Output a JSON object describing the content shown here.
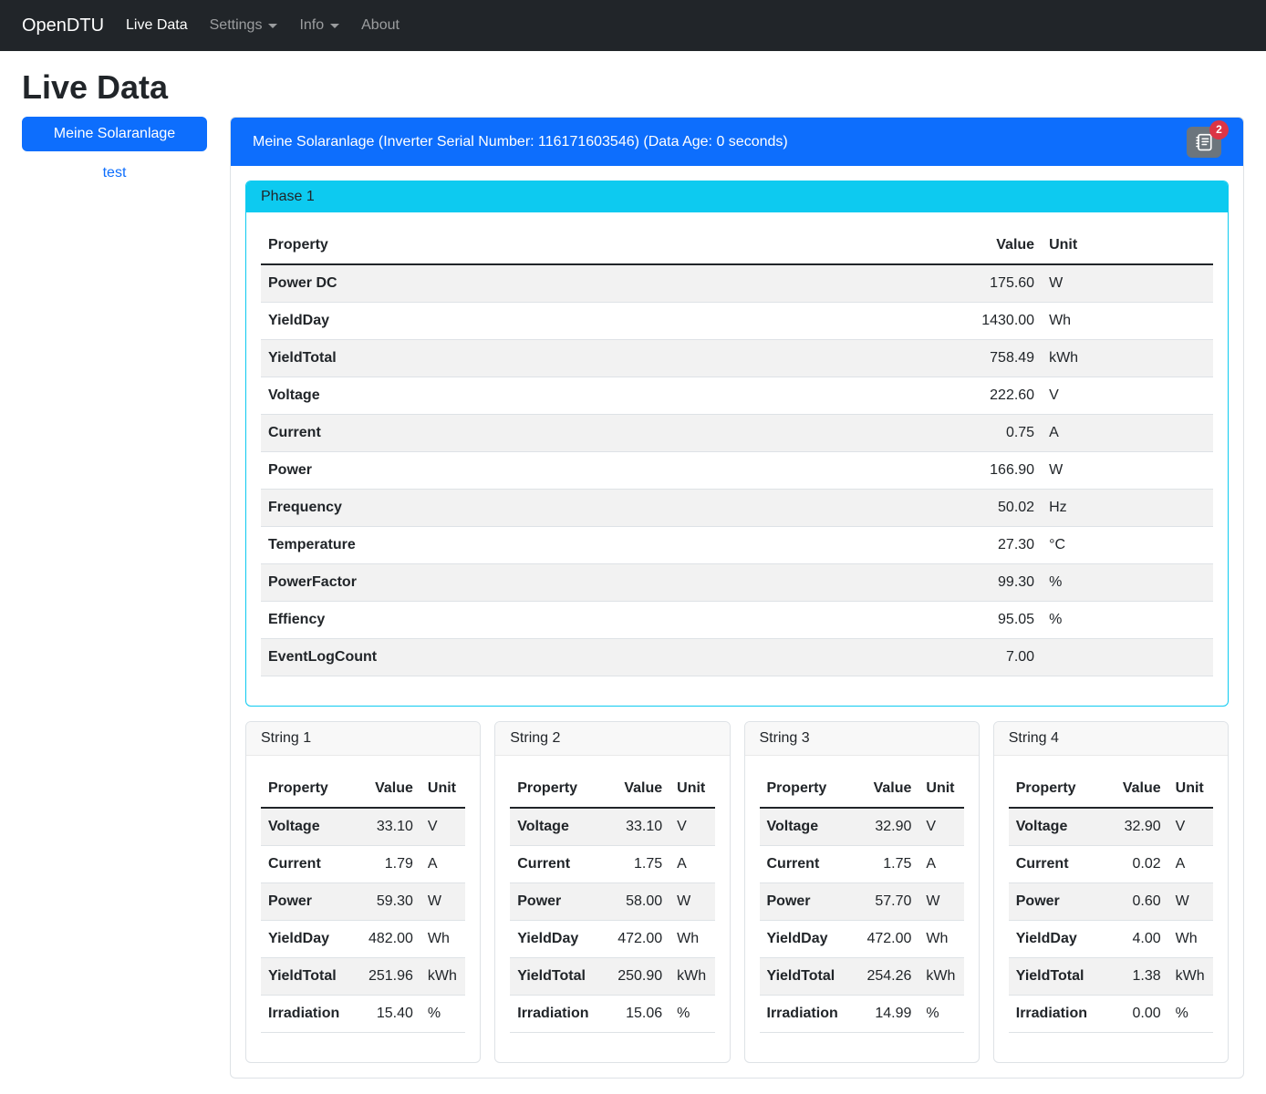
{
  "navbar": {
    "brand": "OpenDTU",
    "items": [
      {
        "label": "Live Data",
        "active": true,
        "dropdown": false
      },
      {
        "label": "Settings",
        "active": false,
        "dropdown": true
      },
      {
        "label": "Info",
        "active": false,
        "dropdown": true
      },
      {
        "label": "About",
        "active": false,
        "dropdown": false
      }
    ]
  },
  "page_title": "Live Data",
  "sidebar": {
    "inverter_button_label": "Meine Solaranlage",
    "secondary_link_label": "test"
  },
  "inverter": {
    "header_text": "Meine Solaranlage (Inverter Serial Number: 116171603546) (Data Age: 0 seconds)",
    "eventlog_icon": "journal-text-icon",
    "eventlog_badge_count": "2"
  },
  "phase": {
    "title": "Phase 1",
    "columns": [
      "Property",
      "Value",
      "Unit"
    ],
    "rows": [
      [
        "Power DC",
        "175.60",
        "W"
      ],
      [
        "YieldDay",
        "1430.00",
        "Wh"
      ],
      [
        "YieldTotal",
        "758.49",
        "kWh"
      ],
      [
        "Voltage",
        "222.60",
        "V"
      ],
      [
        "Current",
        "0.75",
        "A"
      ],
      [
        "Power",
        "166.90",
        "W"
      ],
      [
        "Frequency",
        "50.02",
        "Hz"
      ],
      [
        "Temperature",
        "27.30",
        "°C"
      ],
      [
        "PowerFactor",
        "99.30",
        "%"
      ],
      [
        "Effiency",
        "95.05",
        "%"
      ],
      [
        "EventLogCount",
        "7.00",
        ""
      ]
    ]
  },
  "strings": [
    {
      "title": "String 1",
      "columns": [
        "Property",
        "Value",
        "Unit"
      ],
      "rows": [
        [
          "Voltage",
          "33.10",
          "V"
        ],
        [
          "Current",
          "1.79",
          "A"
        ],
        [
          "Power",
          "59.30",
          "W"
        ],
        [
          "YieldDay",
          "482.00",
          "Wh"
        ],
        [
          "YieldTotal",
          "251.96",
          "kWh"
        ],
        [
          "Irradiation",
          "15.40",
          "%"
        ]
      ]
    },
    {
      "title": "String 2",
      "columns": [
        "Property",
        "Value",
        "Unit"
      ],
      "rows": [
        [
          "Voltage",
          "33.10",
          "V"
        ],
        [
          "Current",
          "1.75",
          "A"
        ],
        [
          "Power",
          "58.00",
          "W"
        ],
        [
          "YieldDay",
          "472.00",
          "Wh"
        ],
        [
          "YieldTotal",
          "250.90",
          "kWh"
        ],
        [
          "Irradiation",
          "15.06",
          "%"
        ]
      ]
    },
    {
      "title": "String 3",
      "columns": [
        "Property",
        "Value",
        "Unit"
      ],
      "rows": [
        [
          "Voltage",
          "32.90",
          "V"
        ],
        [
          "Current",
          "1.75",
          "A"
        ],
        [
          "Power",
          "57.70",
          "W"
        ],
        [
          "YieldDay",
          "472.00",
          "Wh"
        ],
        [
          "YieldTotal",
          "254.26",
          "kWh"
        ],
        [
          "Irradiation",
          "14.99",
          "%"
        ]
      ]
    },
    {
      "title": "String 4",
      "columns": [
        "Property",
        "Value",
        "Unit"
      ],
      "rows": [
        [
          "Voltage",
          "32.90",
          "V"
        ],
        [
          "Current",
          "0.02",
          "A"
        ],
        [
          "Power",
          "0.60",
          "W"
        ],
        [
          "YieldDay",
          "4.00",
          "Wh"
        ],
        [
          "YieldTotal",
          "1.38",
          "kWh"
        ],
        [
          "Irradiation",
          "0.00",
          "%"
        ]
      ]
    }
  ],
  "colors": {
    "primary": "#0d6efd",
    "info": "#0dcaf0",
    "danger": "#dc3545",
    "secondary": "#6c757d",
    "navbar_bg": "#212529"
  }
}
